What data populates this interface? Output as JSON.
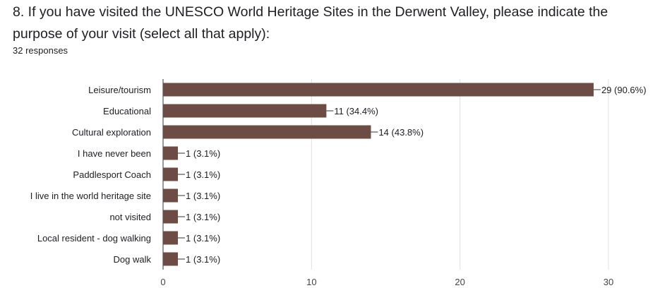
{
  "question": {
    "title": "8. If you have visited the UNESCO World Heritage Sites in the Derwent Valley, please indicate the purpose of your visit (select all that apply):",
    "responses": "32 responses"
  },
  "colors": {
    "bar": "#6d4c45",
    "grid": "#e0e0e0",
    "axis": "#333333"
  },
  "chart_data": {
    "type": "bar",
    "orientation": "horizontal",
    "categories": [
      "Leisure/tourism",
      "Educational",
      "Cultural exploration",
      "I have never been",
      "Paddlesport Coach",
      "I live in the world heritage site",
      "not visited",
      "Local resident - dog walking",
      "Dog walk"
    ],
    "values": [
      29,
      11,
      14,
      1,
      1,
      1,
      1,
      1,
      1
    ],
    "data_labels": [
      "29 (90.6%)",
      "11 (34.4%)",
      "14 (43.8%)",
      "1 (3.1%)",
      "1 (3.1%)",
      "1 (3.1%)",
      "1 (3.1%)",
      "1 (3.1%)",
      "1 (3.1%)"
    ],
    "xlim": [
      0,
      30
    ],
    "xticks": [
      0,
      10,
      20,
      30
    ],
    "grid": true
  }
}
